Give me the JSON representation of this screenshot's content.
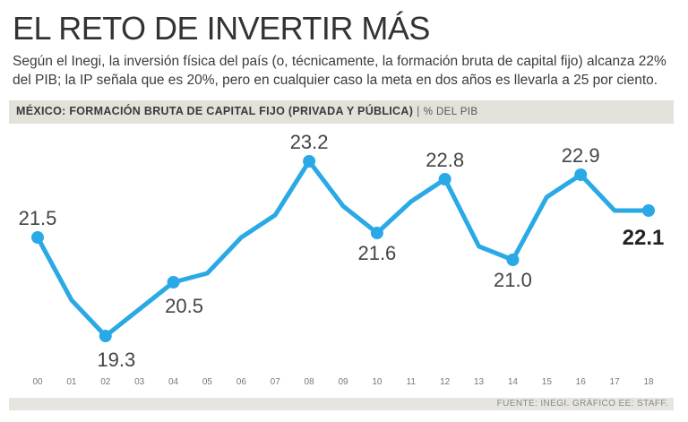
{
  "header": {
    "title": "EL RETO DE INVERTIR MÁS",
    "subtitle": "Según el Inegi, la inversión física del país (o, técnicamente, la formación bruta de capital fijo) alcanza 22% del PIB; la IP señala que es 20%, pero en cualquier caso la meta en dos años es llevarla a 25 por ciento."
  },
  "band": {
    "title": "MÉXICO: FORMACIÓN BRUTA DE CAPITAL FIJO (PRIVADA Y PÚBLICA)",
    "separator": "|",
    "unit": "% DEL PIB"
  },
  "footer": {
    "source": "FUENTE: INEGI. GRÁFICO EE: STAFF."
  },
  "colors": {
    "line": "#2aa9e6",
    "text": "#333333",
    "band": "#e4e1da"
  },
  "chart_data": {
    "type": "line",
    "title": "MÉXICO: FORMACIÓN BRUTA DE CAPITAL FIJO (PRIVADA Y PÚBLICA)",
    "ylabel": "% DEL PIB",
    "xlabel": "",
    "categories": [
      "00",
      "01",
      "02",
      "03",
      "04",
      "05",
      "06",
      "07",
      "08",
      "09",
      "10",
      "11",
      "12",
      "13",
      "14",
      "15",
      "16",
      "17",
      "18"
    ],
    "values": [
      21.5,
      20.1,
      19.3,
      19.9,
      20.5,
      20.7,
      21.5,
      22.0,
      23.2,
      22.2,
      21.6,
      22.3,
      22.8,
      21.3,
      21.0,
      22.4,
      22.9,
      22.1,
      22.1
    ],
    "ylim": [
      19.0,
      23.5
    ],
    "grid": false,
    "labeled_points": [
      {
        "index": 0,
        "label": "21.5",
        "pos": "above",
        "bold": false
      },
      {
        "index": 2,
        "label": "19.3",
        "pos": "below-right",
        "bold": false
      },
      {
        "index": 4,
        "label": "20.5",
        "pos": "below-right",
        "bold": false
      },
      {
        "index": 8,
        "label": "23.2",
        "pos": "above",
        "bold": false
      },
      {
        "index": 10,
        "label": "21.6",
        "pos": "below",
        "bold": false
      },
      {
        "index": 12,
        "label": "22.8",
        "pos": "above",
        "bold": false
      },
      {
        "index": 14,
        "label": "21.0",
        "pos": "below",
        "bold": false
      },
      {
        "index": 16,
        "label": "22.9",
        "pos": "above",
        "bold": false
      },
      {
        "index": 18,
        "label": "22.1",
        "pos": "below",
        "bold": true
      }
    ]
  }
}
